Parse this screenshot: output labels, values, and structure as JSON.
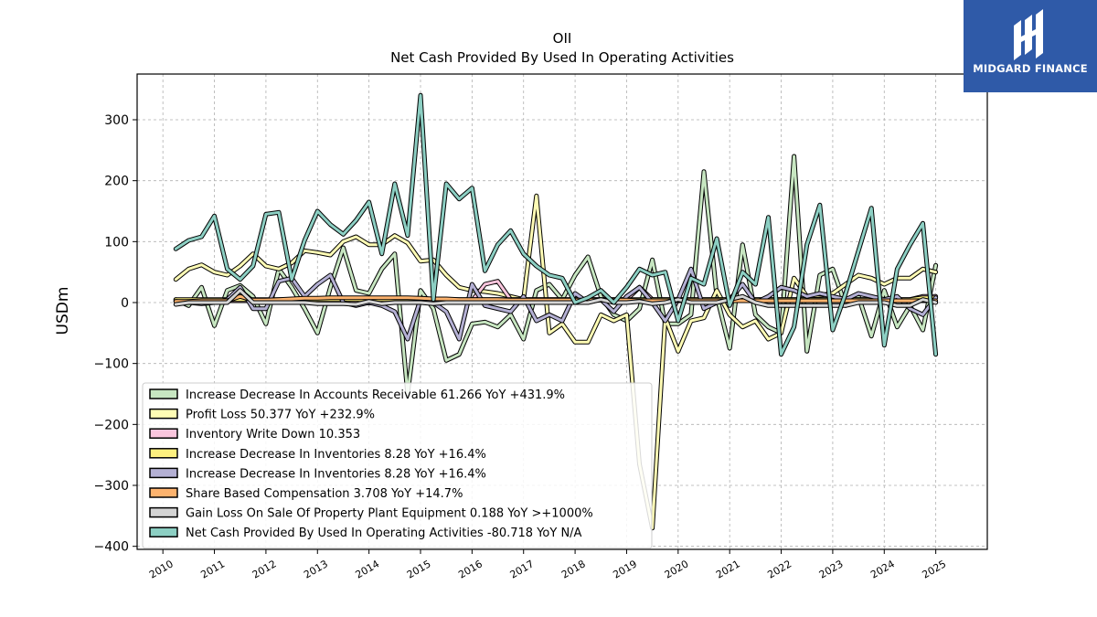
{
  "chart_data": {
    "type": "line",
    "title": "OII",
    "subtitle": "Net Cash Provided By Used In Operating Activities",
    "ylabel": "USDm",
    "xlabel": "",
    "xlim": [
      2009.5,
      2026.0
    ],
    "ylim": [
      -405,
      375
    ],
    "yticks": [
      -400,
      -300,
      -200,
      -100,
      0,
      100,
      200,
      300
    ],
    "xticks": [
      2010,
      2011,
      2012,
      2013,
      2014,
      2015,
      2016,
      2017,
      2018,
      2019,
      2020,
      2021,
      2022,
      2023,
      2024,
      2025
    ],
    "grid": true,
    "legend_position": "bottom-left",
    "start_x": 2010.25,
    "step": 0.25,
    "series": [
      {
        "name": "Increase Decrease In Accounts Receivable  61.266 YoY +431.9%",
        "color": "#c7e6c1",
        "values": [
          5,
          -5,
          25,
          -38,
          20,
          28,
          10,
          -35,
          55,
          25,
          -10,
          -50,
          25,
          90,
          20,
          15,
          55,
          80,
          -150,
          20,
          -10,
          -95,
          -85,
          -35,
          -32,
          -40,
          -20,
          -60,
          20,
          30,
          5,
          45,
          75,
          10,
          -20,
          -30,
          -10,
          70,
          -35,
          -35,
          -20,
          215,
          10,
          -75,
          95,
          -20,
          -40,
          -50,
          240,
          -80,
          45,
          55,
          -5,
          10,
          -55,
          20,
          -40,
          -5,
          -45,
          61
        ]
      },
      {
        "name": "Profit Loss  50.377 YoY +232.9%",
        "color": "#fffcb5",
        "values": [
          38,
          55,
          62,
          50,
          45,
          60,
          80,
          60,
          55,
          65,
          85,
          82,
          78,
          100,
          108,
          95,
          95,
          110,
          98,
          68,
          70,
          45,
          25,
          20,
          18,
          15,
          10,
          5,
          175,
          -50,
          -35,
          -65,
          -65,
          -20,
          -30,
          -20,
          -265,
          -370,
          -25,
          -80,
          -30,
          -25,
          20,
          -20,
          -40,
          -30,
          -60,
          -50,
          40,
          10,
          12,
          15,
          30,
          45,
          40,
          30,
          40,
          40,
          55,
          50
        ]
      },
      {
        "name": "Inventory Write Down  10.353",
        "color": "#fac5dd",
        "values": [
          3,
          3,
          3,
          3,
          3,
          3,
          3,
          3,
          3,
          3,
          3,
          3,
          3,
          3,
          3,
          3,
          3,
          3,
          3,
          3,
          3,
          3,
          3,
          3,
          30,
          35,
          5,
          5,
          5,
          5,
          5,
          5,
          5,
          5,
          5,
          5,
          25,
          5,
          5,
          5,
          5,
          5,
          5,
          5,
          5,
          5,
          5,
          5,
          5,
          5,
          5,
          5,
          5,
          5,
          5,
          5,
          5,
          5,
          10,
          10
        ]
      },
      {
        "name": "Increase Decrease In Inventories  8.28 YoY +16.4%",
        "color": "#fdf07f",
        "values": [
          5,
          5,
          5,
          5,
          5,
          5,
          5,
          5,
          5,
          5,
          5,
          5,
          5,
          5,
          5,
          5,
          5,
          5,
          5,
          5,
          5,
          5,
          5,
          5,
          5,
          5,
          5,
          5,
          5,
          5,
          5,
          5,
          5,
          5,
          5,
          5,
          5,
          5,
          5,
          5,
          5,
          5,
          5,
          5,
          5,
          5,
          5,
          5,
          5,
          5,
          5,
          5,
          5,
          5,
          5,
          5,
          5,
          5,
          8,
          8
        ]
      },
      {
        "name": "Increase Decrease In Inventories  8.28 YoY +16.4%",
        "color": "#b4b0d4",
        "values": [
          2,
          0,
          -2,
          0,
          5,
          25,
          -10,
          -10,
          35,
          40,
          10,
          30,
          45,
          0,
          -5,
          0,
          -5,
          -15,
          -60,
          5,
          0,
          -15,
          -60,
          30,
          -5,
          -10,
          -15,
          10,
          -30,
          -20,
          -30,
          15,
          0,
          5,
          -15,
          10,
          25,
          0,
          -30,
          5,
          55,
          -10,
          0,
          5,
          30,
          0,
          10,
          25,
          20,
          10,
          15,
          10,
          5,
          15,
          10,
          5,
          10,
          -10,
          -20,
          8
        ]
      },
      {
        "name": "Share Based Compensation  3.708 YoY +14.7%",
        "color": "#fdb36e",
        "values": [
          2,
          2,
          3,
          3,
          3,
          10,
          4,
          4,
          5,
          6,
          7,
          7,
          8,
          8,
          8,
          8,
          8,
          8,
          8,
          7,
          6,
          6,
          5,
          5,
          5,
          5,
          4,
          4,
          4,
          4,
          4,
          4,
          4,
          4,
          4,
          4,
          3,
          3,
          3,
          3,
          3,
          3,
          3,
          3,
          3,
          3,
          3,
          3,
          3,
          3,
          3,
          3,
          3,
          3,
          3,
          3,
          3,
          3,
          3,
          3
        ]
      },
      {
        "name": "Gain Loss On Sale Of Property Plant Equipment  0.188 YoY >+1000%",
        "color": "#d4d4d4",
        "values": [
          -3,
          0,
          0,
          0,
          0,
          20,
          0,
          0,
          0,
          0,
          0,
          -2,
          -2,
          -2,
          -3,
          2,
          -2,
          0,
          0,
          0,
          -2,
          0,
          0,
          0,
          0,
          0,
          0,
          0,
          0,
          0,
          0,
          0,
          0,
          5,
          0,
          0,
          2,
          -2,
          0,
          5,
          0,
          0,
          0,
          5,
          10,
          0,
          -5,
          -5,
          -5,
          -5,
          -5,
          -5,
          -5,
          0,
          0,
          0,
          -5,
          -5,
          5,
          0
        ]
      },
      {
        "name": "Net Cash Provided By Used In Operating Activities  -80.718 YoY N/A",
        "color": "#8ccfc3",
        "values": [
          88,
          102,
          108,
          142,
          55,
          38,
          60,
          145,
          148,
          38,
          102,
          150,
          128,
          112,
          135,
          165,
          80,
          195,
          110,
          340,
          5,
          195,
          170,
          188,
          52,
          95,
          118,
          80,
          60,
          45,
          40,
          0,
          8,
          20,
          0,
          25,
          55,
          45,
          50,
          -30,
          40,
          30,
          105,
          -5,
          50,
          30,
          140,
          -85,
          -40,
          95,
          160,
          -45,
          15,
          85,
          155,
          -70,
          55,
          95,
          130,
          -85
        ]
      }
    ]
  },
  "logo": {
    "text": "MIDGARD FINANCE"
  }
}
